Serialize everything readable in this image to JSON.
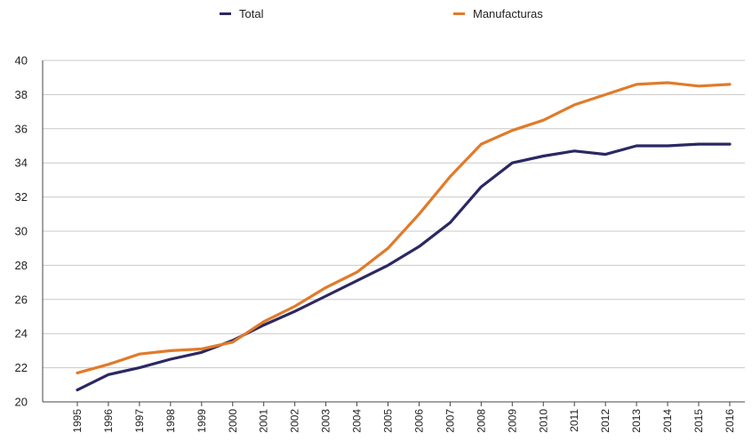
{
  "chart_data": {
    "type": "line",
    "title": "",
    "xlabel": "",
    "ylabel": "",
    "ylim": [
      20,
      40
    ],
    "yticks": [
      "20",
      "22",
      "24",
      "26",
      "28",
      "30",
      "32",
      "34",
      "36",
      "38",
      "40"
    ],
    "grid": true,
    "legend_position": "top",
    "categories": [
      "1995",
      "1996",
      "1997",
      "1998",
      "1999",
      "2000",
      "2001",
      "2002",
      "2003",
      "2004",
      "2005",
      "2006",
      "2007",
      "2008",
      "2009",
      "2010",
      "2011",
      "2012",
      "2013",
      "2014",
      "2015",
      "2016"
    ],
    "series": [
      {
        "name": "Total",
        "color": "#2b2863",
        "values": [
          20.7,
          21.6,
          22.0,
          22.5,
          22.9,
          23.6,
          24.5,
          25.3,
          26.2,
          27.1,
          28.0,
          29.1,
          30.5,
          32.6,
          34.0,
          34.4,
          34.7,
          34.5,
          35.0,
          35.0,
          35.1,
          35.1
        ]
      },
      {
        "name": "Manufacturas",
        "color": "#e07b2a",
        "values": [
          21.7,
          22.2,
          22.8,
          23.0,
          23.1,
          23.5,
          24.7,
          25.6,
          26.7,
          27.6,
          29.0,
          31.0,
          33.2,
          35.1,
          35.9,
          36.5,
          37.4,
          38.0,
          38.6,
          38.7,
          38.5,
          38.6
        ]
      }
    ]
  }
}
